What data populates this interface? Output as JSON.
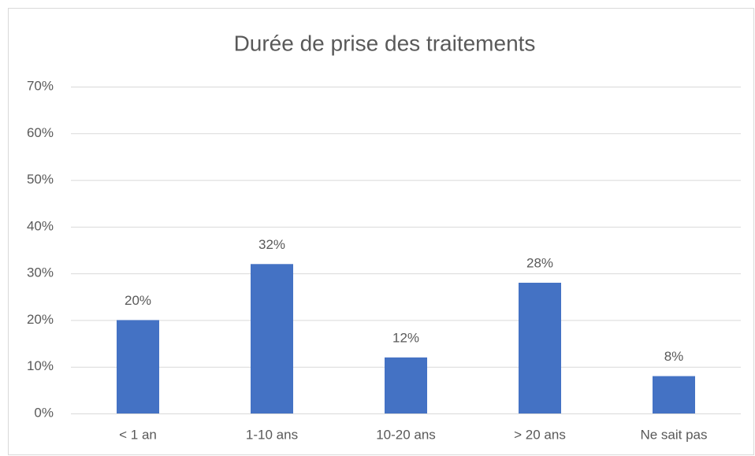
{
  "chart_data": {
    "type": "bar",
    "title": "Durée de prise des traitements",
    "categories": [
      "< 1 an",
      "1-10 ans",
      "10-20 ans",
      "> 20 ans",
      "Ne sait pas"
    ],
    "values": [
      20,
      32,
      12,
      28,
      8
    ],
    "value_labels": [
      "20%",
      "32%",
      "12%",
      "28%",
      "8%"
    ],
    "color": "#4472c4",
    "ylim": [
      0,
      70
    ],
    "yticks": [
      {
        "value": 0,
        "label": "0%"
      },
      {
        "value": 10,
        "label": "10%"
      },
      {
        "value": 20,
        "label": "20%"
      },
      {
        "value": 30,
        "label": "30%"
      },
      {
        "value": 40,
        "label": "40%"
      },
      {
        "value": 50,
        "label": "50%"
      },
      {
        "value": 60,
        "label": "60%"
      },
      {
        "value": 70,
        "label": "70%"
      }
    ],
    "grid": true
  }
}
